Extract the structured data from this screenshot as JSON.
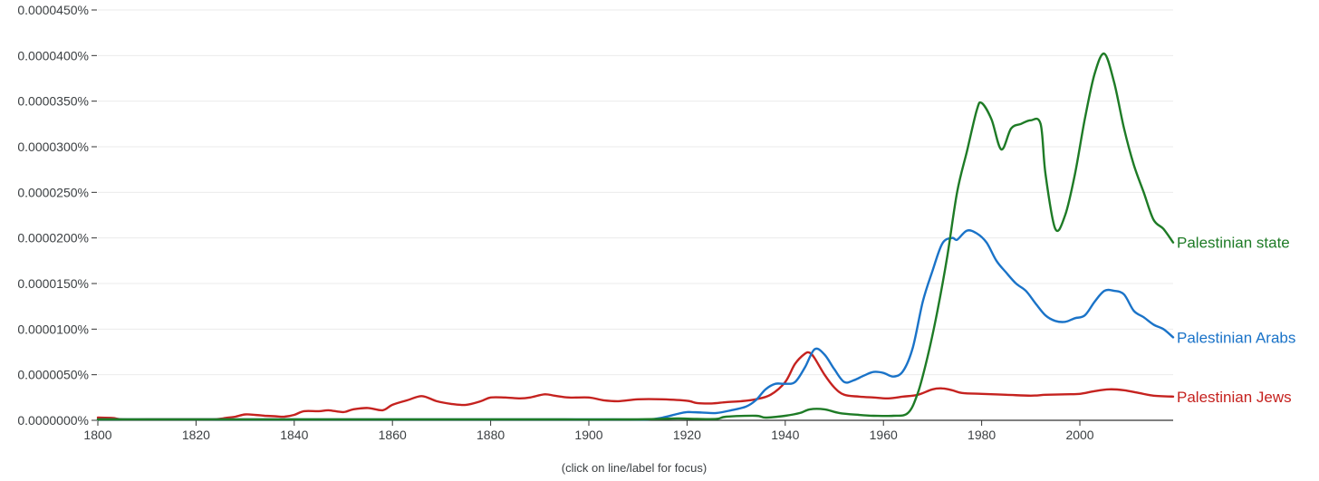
{
  "hint": "(click on line/label for focus)",
  "chart_data": {
    "type": "line",
    "title": "",
    "xlabel": "",
    "ylabel": "",
    "xlim": [
      1800,
      2019
    ],
    "ylim": [
      0,
      4.5e-05
    ],
    "grid": true,
    "legend": "inline-right",
    "x_ticks": [
      1800,
      1820,
      1840,
      1860,
      1880,
      1900,
      1920,
      1940,
      1960,
      1980,
      2000
    ],
    "x_tick_labels": [
      "1800",
      "1820",
      "1840",
      "1860",
      "1880",
      "1900",
      "1920",
      "1940",
      "1960",
      "1980",
      "2000"
    ],
    "y_ticks": [
      0,
      5e-06,
      1e-05,
      1.5e-05,
      2e-05,
      2.5e-05,
      3e-05,
      3.5e-05,
      4e-05,
      4.5e-05
    ],
    "y_tick_labels": [
      "0.0000000%",
      "0.0000050%",
      "0.0000100%",
      "0.0000150%",
      "0.0000200%",
      "0.0000250%",
      "0.0000300%",
      "0.0000350%",
      "0.0000400%",
      "0.0000450%"
    ],
    "series": [
      {
        "name": "Palestinian Jews",
        "color": "#c5221f",
        "points": [
          [
            1800,
            3e-07
          ],
          [
            1803,
            2.5e-07
          ],
          [
            1805,
            1e-07
          ],
          [
            1810,
            1e-07
          ],
          [
            1815,
            1e-07
          ],
          [
            1820,
            1e-07
          ],
          [
            1824,
            1.2e-07
          ],
          [
            1826,
            2.5e-07
          ],
          [
            1828,
            4e-07
          ],
          [
            1830,
            6.5e-07
          ],
          [
            1832,
            6e-07
          ],
          [
            1834,
            5e-07
          ],
          [
            1836,
            4.5e-07
          ],
          [
            1838,
            4e-07
          ],
          [
            1840,
            6e-07
          ],
          [
            1842,
            1e-06
          ],
          [
            1845,
            1e-06
          ],
          [
            1847,
            1.1e-06
          ],
          [
            1850,
            9e-07
          ],
          [
            1852,
            1.2e-06
          ],
          [
            1855,
            1.35e-06
          ],
          [
            1858,
            1.1e-06
          ],
          [
            1860,
            1.7e-06
          ],
          [
            1863,
            2.2e-06
          ],
          [
            1866,
            2.65e-06
          ],
          [
            1869,
            2.1e-06
          ],
          [
            1872,
            1.8e-06
          ],
          [
            1875,
            1.7e-06
          ],
          [
            1878,
            2.1e-06
          ],
          [
            1880,
            2.5e-06
          ],
          [
            1883,
            2.5e-06
          ],
          [
            1886,
            2.4e-06
          ],
          [
            1888,
            2.5e-06
          ],
          [
            1891,
            2.85e-06
          ],
          [
            1893,
            2.7e-06
          ],
          [
            1896,
            2.5e-06
          ],
          [
            1900,
            2.5e-06
          ],
          [
            1903,
            2.2e-06
          ],
          [
            1906,
            2.1e-06
          ],
          [
            1910,
            2.3e-06
          ],
          [
            1915,
            2.3e-06
          ],
          [
            1920,
            2.15e-06
          ],
          [
            1922,
            1.9e-06
          ],
          [
            1925,
            1.85e-06
          ],
          [
            1928,
            2e-06
          ],
          [
            1931,
            2.1e-06
          ],
          [
            1934,
            2.3e-06
          ],
          [
            1937,
            2.8e-06
          ],
          [
            1940,
            4.2e-06
          ],
          [
            1942,
            6.2e-06
          ],
          [
            1944,
            7.3e-06
          ],
          [
            1945,
            7.4e-06
          ],
          [
            1946,
            6.8e-06
          ],
          [
            1948,
            5e-06
          ],
          [
            1950,
            3.6e-06
          ],
          [
            1952,
            2.8e-06
          ],
          [
            1955,
            2.6e-06
          ],
          [
            1958,
            2.5e-06
          ],
          [
            1961,
            2.4e-06
          ],
          [
            1964,
            2.6e-06
          ],
          [
            1967,
            2.8e-06
          ],
          [
            1970,
            3.4e-06
          ],
          [
            1972,
            3.5e-06
          ],
          [
            1974,
            3.3e-06
          ],
          [
            1976,
            3e-06
          ],
          [
            1980,
            2.9e-06
          ],
          [
            1985,
            2.8e-06
          ],
          [
            1990,
            2.7e-06
          ],
          [
            1993,
            2.8e-06
          ],
          [
            1997,
            2.85e-06
          ],
          [
            2000,
            2.9e-06
          ],
          [
            2003,
            3.2e-06
          ],
          [
            2006,
            3.4e-06
          ],
          [
            2009,
            3.3e-06
          ],
          [
            2012,
            3e-06
          ],
          [
            2015,
            2.7e-06
          ],
          [
            2019,
            2.6e-06
          ]
        ]
      },
      {
        "name": "Palestinian Arabs",
        "color": "#1a73c8",
        "points": [
          [
            1800,
            5e-08
          ],
          [
            1830,
            5e-08
          ],
          [
            1860,
            5e-08
          ],
          [
            1890,
            5e-08
          ],
          [
            1905,
            5e-08
          ],
          [
            1912,
            8e-08
          ],
          [
            1915,
            3e-07
          ],
          [
            1918,
            7e-07
          ],
          [
            1920,
            9e-07
          ],
          [
            1923,
            8.5e-07
          ],
          [
            1926,
            8e-07
          ],
          [
            1929,
            1.1e-06
          ],
          [
            1932,
            1.5e-06
          ],
          [
            1934,
            2.2e-06
          ],
          [
            1936,
            3.4e-06
          ],
          [
            1938,
            4e-06
          ],
          [
            1940,
            4e-06
          ],
          [
            1942,
            4.2e-06
          ],
          [
            1944,
            5.8e-06
          ],
          [
            1946,
            7.8e-06
          ],
          [
            1948,
            7.2e-06
          ],
          [
            1950,
            5.6e-06
          ],
          [
            1952,
            4.2e-06
          ],
          [
            1954,
            4.4e-06
          ],
          [
            1956,
            4.9e-06
          ],
          [
            1958,
            5.3e-06
          ],
          [
            1960,
            5.2e-06
          ],
          [
            1962,
            4.8e-06
          ],
          [
            1964,
            5.4e-06
          ],
          [
            1966,
            8e-06
          ],
          [
            1968,
            1.3e-05
          ],
          [
            1970,
            1.64e-05
          ],
          [
            1972,
            1.94e-05
          ],
          [
            1974,
            2e-05
          ],
          [
            1975,
            1.98e-05
          ],
          [
            1977,
            2.08e-05
          ],
          [
            1979,
            2.05e-05
          ],
          [
            1981,
            1.95e-05
          ],
          [
            1983,
            1.75e-05
          ],
          [
            1985,
            1.62e-05
          ],
          [
            1987,
            1.5e-05
          ],
          [
            1989,
            1.42e-05
          ],
          [
            1991,
            1.28e-05
          ],
          [
            1993,
            1.15e-05
          ],
          [
            1995,
            1.09e-05
          ],
          [
            1997,
            1.08e-05
          ],
          [
            1999,
            1.12e-05
          ],
          [
            2001,
            1.15e-05
          ],
          [
            2003,
            1.3e-05
          ],
          [
            2005,
            1.42e-05
          ],
          [
            2007,
            1.42e-05
          ],
          [
            2009,
            1.38e-05
          ],
          [
            2011,
            1.2e-05
          ],
          [
            2013,
            1.13e-05
          ],
          [
            2015,
            1.05e-05
          ],
          [
            2017,
            1e-05
          ],
          [
            2019,
            9.1e-06
          ]
        ]
      },
      {
        "name": "Palestinian state",
        "color": "#1e7b26",
        "points": [
          [
            1800,
            5e-08
          ],
          [
            1830,
            5e-08
          ],
          [
            1860,
            5e-08
          ],
          [
            1885,
            8e-08
          ],
          [
            1895,
            1e-07
          ],
          [
            1910,
            1e-07
          ],
          [
            1918,
            2e-07
          ],
          [
            1922,
            1.5e-07
          ],
          [
            1926,
            1.5e-07
          ],
          [
            1928,
            4e-07
          ],
          [
            1934,
            5e-07
          ],
          [
            1936,
            3e-07
          ],
          [
            1940,
            5e-07
          ],
          [
            1943,
            8e-07
          ],
          [
            1945,
            1.2e-06
          ],
          [
            1948,
            1.2e-06
          ],
          [
            1951,
            8e-07
          ],
          [
            1955,
            6e-07
          ],
          [
            1958,
            5e-07
          ],
          [
            1962,
            5e-07
          ],
          [
            1965,
            8e-07
          ],
          [
            1967,
            3e-06
          ],
          [
            1969,
            7e-06
          ],
          [
            1971,
            1.2e-05
          ],
          [
            1973,
            1.8e-05
          ],
          [
            1975,
            2.5e-05
          ],
          [
            1977,
            2.95e-05
          ],
          [
            1979,
            3.4e-05
          ],
          [
            1980,
            3.48e-05
          ],
          [
            1982,
            3.3e-05
          ],
          [
            1984,
            2.97e-05
          ],
          [
            1986,
            3.2e-05
          ],
          [
            1988,
            3.25e-05
          ],
          [
            1990,
            3.29e-05
          ],
          [
            1992,
            3.25e-05
          ],
          [
            1993,
            2.7e-05
          ],
          [
            1995,
            2.1e-05
          ],
          [
            1997,
            2.25e-05
          ],
          [
            1999,
            2.7e-05
          ],
          [
            2001,
            3.3e-05
          ],
          [
            2003,
            3.8e-05
          ],
          [
            2005,
            4.02e-05
          ],
          [
            2007,
            3.7e-05
          ],
          [
            2009,
            3.2e-05
          ],
          [
            2011,
            2.8e-05
          ],
          [
            2013,
            2.5e-05
          ],
          [
            2015,
            2.2e-05
          ],
          [
            2017,
            2.1e-05
          ],
          [
            2019,
            1.95e-05
          ]
        ]
      }
    ]
  }
}
